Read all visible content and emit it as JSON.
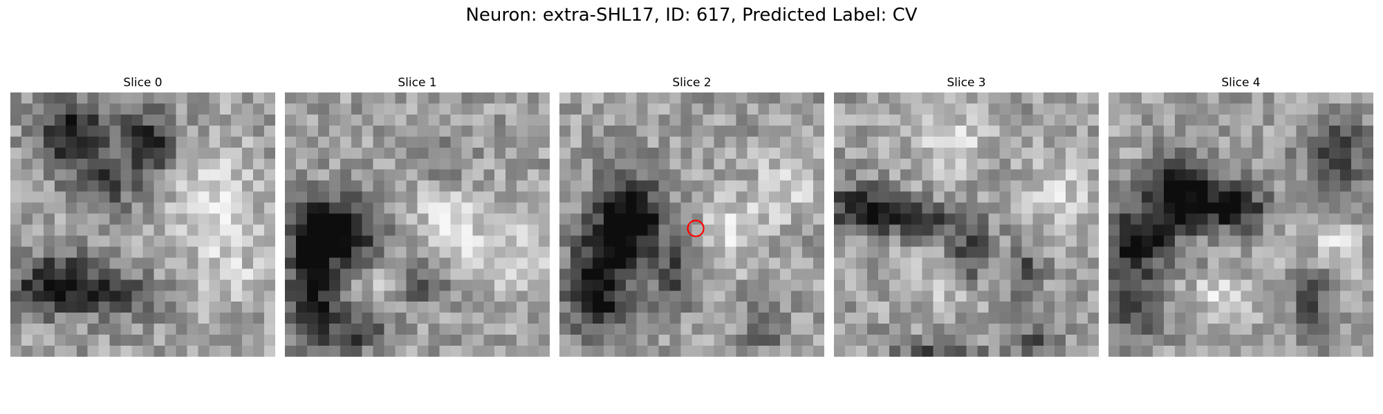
{
  "figure": {
    "title": "Neuron: extra-SHL17, ID: 617, Predicted Label: CV"
  },
  "image": {
    "grid_size": 24,
    "colormap": "grayscale",
    "marker_color": "#ff0000",
    "marker_slice_index": 2
  },
  "slices": [
    {
      "title": "Slice 0"
    },
    {
      "title": "Slice 1"
    },
    {
      "title": "Slice 2"
    },
    {
      "title": "Slice 3"
    },
    {
      "title": "Slice 4"
    }
  ]
}
